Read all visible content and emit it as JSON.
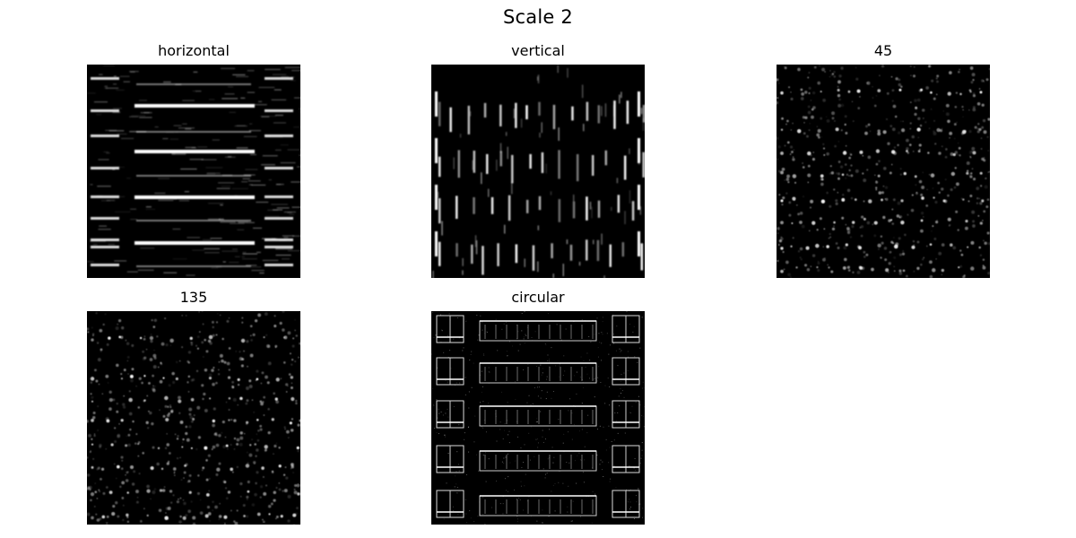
{
  "figure": {
    "title": "Scale 2"
  },
  "panels": [
    {
      "title": "horizontal"
    },
    {
      "title": "vertical"
    },
    {
      "title": "45"
    },
    {
      "title": "135"
    },
    {
      "title": "circular"
    }
  ]
}
